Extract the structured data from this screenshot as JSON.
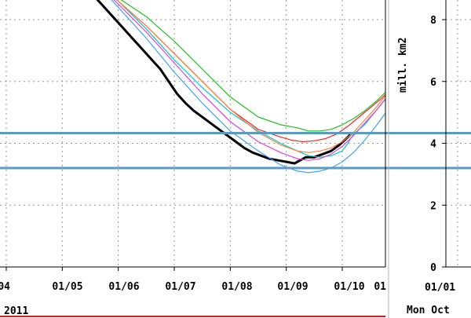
{
  "chart_data": {
    "type": "line",
    "x_tick_labels": [
      "/04",
      "01/05",
      "01/06",
      "01/07",
      "01/08",
      "01/09",
      "01/10",
      "01"
    ],
    "year_label": "2011",
    "ylabel": "mill. km2",
    "y_tick_labels": [
      "8",
      "6",
      "4",
      "2",
      "0"
    ],
    "ylim": [
      0,
      9
    ],
    "xlim_month": [
      4,
      10.3
    ],
    "grid": true,
    "reference_lines": [
      4.33,
      3.2
    ],
    "right_panel": {
      "x_tick_label": "01/01",
      "footer_text": "Mon Oct"
    },
    "series": [
      {
        "color": "#000000",
        "x": [
          5.4,
          5.55,
          5.7,
          5.85,
          6.0,
          6.15,
          6.3,
          6.45,
          6.6,
          6.75,
          6.9,
          7.05,
          7.2,
          7.35,
          7.5,
          7.65,
          7.8,
          7.95,
          8.1,
          8.25,
          8.4,
          8.55,
          8.7,
          8.85,
          9.0,
          9.15,
          9.2,
          9.35,
          9.5,
          9.65,
          9.8,
          9.95,
          10.1,
          10.15
        ],
        "y": [
          9.2,
          8.8,
          8.5,
          8.2,
          7.9,
          7.6,
          7.3,
          7.0,
          6.7,
          6.4,
          6.0,
          5.6,
          5.3,
          5.05,
          4.85,
          4.65,
          4.45,
          4.25,
          4.05,
          3.85,
          3.7,
          3.6,
          3.5,
          3.45,
          3.4,
          3.35,
          3.4,
          3.55,
          3.55,
          3.65,
          3.75,
          3.95,
          4.2,
          4.3
        ]
      },
      {
        "color": "#ff2020",
        "x": [
          5.6,
          6.0,
          6.5,
          7.0,
          7.5,
          8.0,
          8.5,
          8.9,
          9.1,
          9.3,
          9.5,
          9.7,
          9.9,
          10.1,
          10.3,
          10.5,
          10.7,
          10.9,
          11.1,
          11.3
        ],
        "y": [
          9.2,
          8.6,
          7.8,
          6.9,
          6.0,
          5.1,
          4.45,
          4.2,
          4.1,
          4.05,
          4.08,
          4.15,
          4.3,
          4.55,
          4.85,
          5.15,
          5.45,
          5.8,
          6.25,
          6.7
        ]
      },
      {
        "color": "#20c020",
        "x": [
          5.6,
          6.0,
          6.5,
          7.0,
          7.5,
          8.0,
          8.5,
          8.9,
          9.2,
          9.4,
          9.6,
          9.8,
          10.0,
          10.2,
          10.4,
          10.6,
          10.8,
          11.0,
          11.2,
          11.3
        ],
        "y": [
          9.2,
          8.7,
          8.1,
          7.3,
          6.4,
          5.5,
          4.85,
          4.6,
          4.5,
          4.4,
          4.4,
          4.45,
          4.6,
          4.8,
          5.05,
          5.35,
          5.7,
          6.15,
          6.7,
          7.0
        ]
      },
      {
        "color": "#00c8c8",
        "x": [
          5.6,
          6.0,
          6.5,
          7.0,
          7.5,
          8.0,
          8.5,
          8.9,
          9.2,
          9.4,
          9.6,
          9.8,
          10.0,
          10.1,
          10.2,
          10.4,
          10.6,
          10.8,
          11.0,
          11.2,
          11.3
        ],
        "y": [
          9.2,
          8.6,
          7.7,
          6.7,
          5.8,
          5.0,
          4.4,
          4.0,
          3.75,
          3.6,
          3.55,
          3.6,
          3.75,
          4.0,
          4.3,
          4.6,
          5.05,
          5.5,
          5.95,
          6.4,
          6.7
        ]
      },
      {
        "color": "#e040e0",
        "x": [
          5.6,
          6.0,
          6.5,
          7.0,
          7.5,
          8.0,
          8.5,
          8.9,
          9.2,
          9.4,
          9.6,
          9.8,
          10.0,
          10.2,
          10.4,
          10.6,
          10.8,
          11.0,
          11.3
        ],
        "y": [
          9.2,
          8.5,
          7.6,
          6.6,
          5.6,
          4.7,
          4.05,
          3.7,
          3.5,
          3.45,
          3.5,
          3.65,
          3.9,
          4.25,
          4.65,
          5.05,
          5.5,
          5.95,
          6.6
        ]
      },
      {
        "color": "#ff8040",
        "x": [
          5.6,
          6.0,
          6.5,
          7.0,
          7.5,
          8.0,
          8.5,
          8.9,
          9.2,
          9.4,
          9.6,
          9.8,
          10.0,
          10.2,
          10.4,
          10.6,
          10.8,
          11.0,
          11.3
        ],
        "y": [
          9.2,
          8.6,
          7.8,
          6.9,
          6.0,
          5.1,
          4.35,
          3.95,
          3.75,
          3.7,
          3.75,
          3.85,
          4.05,
          4.35,
          4.75,
          5.15,
          5.6,
          6.05,
          6.7
        ]
      },
      {
        "color": "#40a0ff",
        "x": [
          5.6,
          6.0,
          6.5,
          7.0,
          7.5,
          8.0,
          8.5,
          8.9,
          9.2,
          9.4,
          9.6,
          9.8,
          10.0,
          10.2,
          10.4,
          10.6,
          10.8,
          11.0,
          11.2,
          11.3
        ],
        "y": [
          9.2,
          8.4,
          7.4,
          6.3,
          5.3,
          4.4,
          3.75,
          3.3,
          3.1,
          3.05,
          3.1,
          3.2,
          3.4,
          3.7,
          4.1,
          4.55,
          5.05,
          5.6,
          6.1,
          6.4
        ]
      }
    ]
  }
}
